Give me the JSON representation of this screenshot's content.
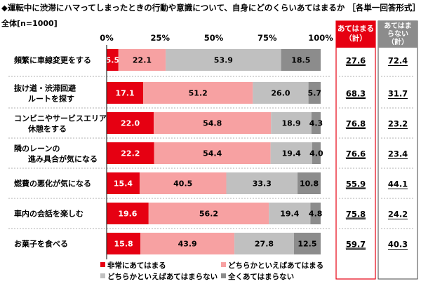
{
  "header": {
    "title": "◆運転中に渋滞にハマってしまったときの行動や意識について、自身にどのくらいあてはまるか ［各単一回答形式］",
    "sample": "全体[n=1000]"
  },
  "colors": {
    "very_much": "#e60012",
    "somewhat_applies": "#f7a1a2",
    "somewhat_not": "#c0c0c0",
    "not_at_all": "#8c8c8c",
    "applies_header": "#e60012",
    "not_applies_header": "#8c8c8c"
  },
  "summary_headers": {
    "applies": "あてはまる\n（計）",
    "not_applies": "あてはま\nらない\n（計）"
  },
  "chart_data": {
    "type": "bar",
    "orientation": "horizontal",
    "stacked": true,
    "title": "◆運転中に渋滞にハマってしまったときの行動や意識について、自身にどのくらいあてはまるか ［各単一回答形式］",
    "xlim": [
      0,
      100
    ],
    "x_ticks": [
      "0%",
      "25%",
      "50%",
      "75%",
      "100%"
    ],
    "categories": [
      "頻繁に車線変更をする",
      "抜け道・渋滞回避\nルートを探す",
      "コンビニやサービスエリアで\n休憩をする",
      "隣のレーンの\n進み具合が気になる",
      "燃費の悪化が気になる",
      "車内の会話を楽しむ",
      "お菓子を食べる"
    ],
    "series": [
      {
        "name": "非常にあてはまる",
        "values": [
          5.5,
          17.1,
          22.0,
          22.2,
          15.4,
          19.6,
          15.8
        ]
      },
      {
        "name": "どちらかといえばあてはまる",
        "values": [
          22.1,
          51.2,
          54.8,
          54.4,
          40.5,
          56.2,
          43.9
        ]
      },
      {
        "name": "どちらかといえばあてはまらない",
        "values": [
          53.9,
          26.0,
          18.9,
          19.4,
          33.3,
          19.4,
          27.8
        ]
      },
      {
        "name": "全くあてはまらない",
        "values": [
          18.5,
          5.7,
          4.3,
          4.0,
          10.8,
          4.8,
          12.5
        ]
      }
    ],
    "value_labels": [
      [
        "5.5",
        "22.1",
        "53.9",
        "18.5"
      ],
      [
        "17.1",
        "51.2",
        "26.0",
        "5.7"
      ],
      [
        "22.0",
        "54.8",
        "18.9",
        "4.3"
      ],
      [
        "22.2",
        "54.4",
        "19.4",
        "4.0"
      ],
      [
        "15.4",
        "40.5",
        "33.3",
        "10.8"
      ],
      [
        "19.6",
        "56.2",
        "19.4",
        "4.8"
      ],
      [
        "15.8",
        "43.9",
        "27.8",
        "12.5"
      ]
    ],
    "applies_total": [
      "27.6",
      "68.3",
      "76.8",
      "76.6",
      "55.9",
      "75.8",
      "59.7"
    ],
    "not_applies_total": [
      "72.4",
      "31.7",
      "23.2",
      "23.4",
      "44.1",
      "24.2",
      "40.3"
    ],
    "legend_position": "bottom"
  }
}
